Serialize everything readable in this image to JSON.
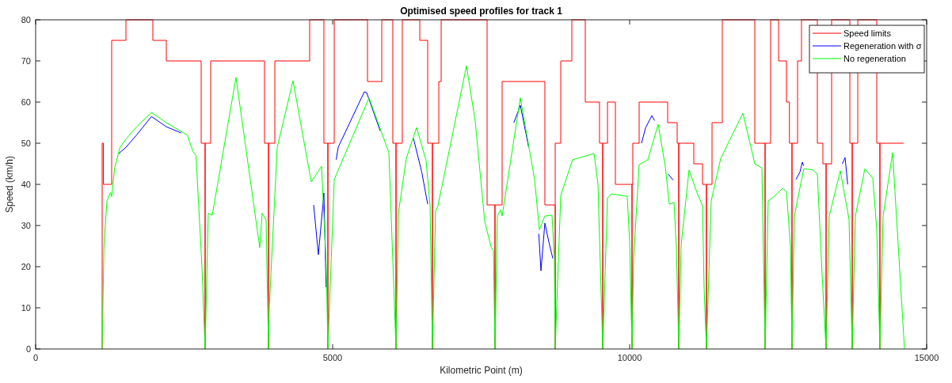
{
  "chart_data": {
    "type": "line",
    "title": "Optimised speed profiles for track 1",
    "xlabel": "Kilometric Point (m)",
    "ylabel": "Speed (km/h)",
    "xlim": [
      0,
      15000
    ],
    "xticks": [
      0,
      5000,
      10000,
      15000
    ],
    "ylim": [
      0,
      80
    ],
    "yticks": [
      0,
      10,
      20,
      30,
      40,
      50,
      60,
      70,
      80
    ],
    "grid": false,
    "legend": "top right",
    "series": [
      {
        "name": "Speed limits",
        "color": "#ff0000",
        "x": [
          1120,
          1120,
          1140,
          1140,
          1280,
          1280,
          1520,
          1520,
          1973,
          1973,
          2200,
          2200,
          2787,
          2787,
          2853,
          2853,
          2853,
          2947,
          2947,
          3853,
          3853,
          3920,
          3920,
          3920,
          4027,
          4027,
          4613,
          4613,
          4853,
          4853,
          4920,
          4920,
          4920,
          5027,
          5027,
          5587,
          5587,
          5827,
          5827,
          6013,
          6013,
          6067,
          6067,
          6067,
          6173,
          6173,
          6467,
          6467,
          6600,
          6600,
          6680,
          6680,
          6680,
          6787,
          6787,
          6827,
          6827,
          7600,
          7600,
          7733,
          7733,
          7733,
          7853,
          7853,
          8573,
          8573,
          8747,
          8747,
          8747,
          8840,
          8840,
          9027,
          9027,
          9253,
          9253,
          9493,
          9493,
          9547,
          9547,
          9547,
          9627,
          9627,
          9760,
          9760,
          10040,
          10040,
          10040,
          10053,
          10053,
          10160,
          10160,
          10640,
          10640,
          10800,
          10800,
          10827,
          10827,
          10827,
          11080,
          11080,
          11227,
          11227,
          11293,
          11293,
          11293,
          11387,
          11387,
          11560,
          11560,
          12107,
          12107,
          12280,
          12280,
          12280,
          12373,
          12373,
          12507,
          12507,
          12640,
          12640,
          12690,
          12690,
          12733,
          12733,
          12733,
          12827,
          12827,
          12893,
          12893,
          13160,
          13160,
          13253,
          13253,
          13307,
          13307,
          13307,
          13400,
          13400,
          13707,
          13707,
          13747,
          13747,
          13747,
          13840,
          13840,
          14160,
          14160,
          14213,
          14213,
          14213,
          14613
        ],
        "values": [
          0,
          50,
          50,
          40,
          40,
          75,
          75,
          80,
          80,
          75,
          75,
          70,
          70,
          50,
          50,
          0,
          50,
          50,
          70,
          70,
          50,
          50,
          0,
          50,
          50,
          70,
          70,
          80,
          80,
          50,
          50,
          0,
          50,
          50,
          80,
          80,
          65,
          65,
          80,
          80,
          50,
          50,
          0,
          50,
          50,
          80,
          80,
          75,
          75,
          50,
          50,
          0,
          50,
          50,
          65,
          65,
          80,
          80,
          35,
          35,
          0,
          35,
          35,
          65,
          65,
          35,
          35,
          0,
          50,
          50,
          70,
          70,
          80,
          80,
          60,
          60,
          50,
          50,
          0,
          50,
          50,
          60,
          60,
          40,
          40,
          0,
          40,
          40,
          50,
          50,
          60,
          60,
          55,
          55,
          50,
          50,
          0,
          50,
          50,
          45,
          45,
          40,
          40,
          0,
          40,
          40,
          55,
          55,
          80,
          80,
          50,
          50,
          0,
          50,
          50,
          80,
          80,
          70,
          70,
          60,
          60,
          50,
          50,
          0,
          50,
          50,
          70,
          70,
          80,
          80,
          50,
          50,
          45,
          45,
          0,
          45,
          45,
          80,
          80,
          50,
          50,
          0,
          50,
          50,
          80,
          80,
          50,
          50,
          0,
          50,
          50
        ]
      },
      {
        "name": "Regeneration with σ",
        "color": "#0000ff",
        "x": [
          1400,
          1520,
          1700,
          1950,
          2200,
          2450,
          3500,
          4680,
          4760,
          4853,
          4890,
          4950,
          5060,
          5093,
          5533,
          5573,
          5800,
          6100,
          6360,
          6500,
          6600,
          7000,
          8050,
          8160,
          8300,
          8400,
          8470,
          8507,
          8573,
          8640,
          8707,
          9500,
          10200,
          10267,
          10373,
          10420,
          10500,
          10650,
          10733,
          10773,
          11500,
          12800,
          12867,
          12907,
          12930,
          13300,
          13580,
          13627,
          13670
        ],
        "values": [
          47.5,
          49,
          52,
          56.5,
          54,
          52.5,
          null,
          35,
          22.9,
          37.9,
          15,
          null,
          46,
          49,
          62.5,
          62.3,
          53,
          null,
          51.2,
          43,
          35.2,
          null,
          55,
          59.2,
          49,
          null,
          28,
          19,
          30.6,
          26,
          22,
          null,
          50,
          53.7,
          56.7,
          55.5,
          null,
          42.5,
          41,
          null,
          null,
          41.2,
          43,
          45.4,
          44.5,
          null,
          45,
          46.5,
          40
        ]
      },
      {
        "name": "No regeneration",
        "color": "#00ff00",
        "x": [
          1120,
          1150,
          1200,
          1260,
          1280,
          1330,
          1420,
          1520,
          1700,
          1950,
          2200,
          2550,
          2650,
          2700,
          2800,
          2853,
          2907,
          2973,
          3373,
          3773,
          3813,
          3880,
          3920,
          3933,
          4067,
          4333,
          4640,
          4813,
          4893,
          4920,
          5027,
          5613,
          5947,
          6067,
          6107,
          6240,
          6413,
          6573,
          6640,
          6680,
          6733,
          6773,
          7253,
          7400,
          7560,
          7667,
          7707,
          7733,
          7773,
          7827,
          7853,
          8160,
          8400,
          8480,
          8573,
          8693,
          8733,
          8747,
          8840,
          9040,
          9400,
          9467,
          9547,
          9627,
          9693,
          9960,
          10000,
          10040,
          10067,
          10160,
          10307,
          10480,
          10600,
          10667,
          10747,
          10787,
          10827,
          10867,
          11000,
          11133,
          11227,
          11253,
          11293,
          11373,
          11533,
          11907,
          12107,
          12227,
          12280,
          12333,
          12427,
          12573,
          12640,
          12707,
          12733,
          12773,
          12867,
          12933,
          13093,
          13160,
          13240,
          13307,
          13360,
          13547,
          13693,
          13747,
          13800,
          13960,
          14093,
          14160,
          14213,
          14267,
          14427,
          14627
        ],
        "values": [
          0,
          25,
          36,
          38,
          37,
          44,
          49,
          51,
          54,
          57.5,
          55,
          52,
          48,
          47,
          20,
          0,
          33,
          32.5,
          66,
          24.6,
          33,
          31.3,
          0,
          10,
          49,
          65.2,
          40.6,
          44.4,
          20,
          0,
          41.2,
          61,
          47.7,
          0,
          33,
          46.3,
          53.8,
          45.8,
          34.8,
          0,
          33.5,
          34.8,
          68.8,
          55.4,
          31,
          24.8,
          23.8,
          0,
          32.3,
          33.8,
          32.3,
          61,
          41.2,
          29,
          32.3,
          32.5,
          22,
          0,
          37.3,
          46,
          47.5,
          40,
          0,
          36.7,
          37.7,
          37.1,
          25.8,
          0,
          22,
          44.8,
          46,
          54.6,
          44.4,
          35.2,
          35.6,
          24.6,
          0,
          25.2,
          43.5,
          38,
          34.8,
          15,
          0,
          36,
          46.3,
          57.3,
          45,
          44,
          0,
          36,
          37,
          39,
          38.3,
          25,
          0,
          32.3,
          39.2,
          43.8,
          43.5,
          42.5,
          18,
          0,
          32.3,
          43.3,
          31.5,
          0,
          32.3,
          43.8,
          41.5,
          29,
          0,
          32.3,
          47.7,
          0
        ]
      }
    ]
  }
}
